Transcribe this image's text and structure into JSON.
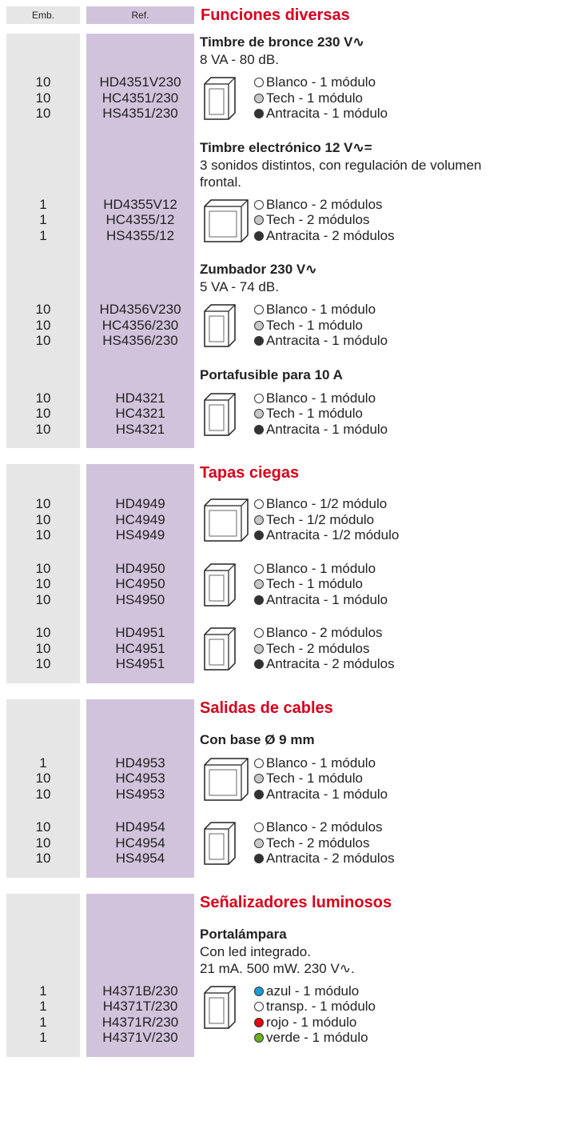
{
  "header": {
    "emb": "Emb.",
    "ref": "Ref."
  },
  "sections": [
    {
      "title": "Funciones diversas",
      "groups": [
        {
          "subtitle": "Timbre de bronce 230 V∿",
          "description": [
            "8 VA - 80 dB."
          ],
          "rows": [
            {
              "emb": "10",
              "ref": "HD4351V230",
              "label": "Blanco - 1 módulo",
              "color": "#ffffff"
            },
            {
              "emb": "10",
              "ref": "HC4351/230",
              "label": "Tech - 1 módulo",
              "color": "#c8c8c8"
            },
            {
              "emb": "10",
              "ref": "HS4351/230",
              "label": "Antracita - 1 módulo",
              "color": "#333333"
            }
          ]
        },
        {
          "subtitle": "Timbre electrónico 12 V∿=",
          "description": [
            "3 sonidos distintos, con regulación de volumen",
            "frontal."
          ],
          "rows": [
            {
              "emb": "1",
              "ref": "HD4355V12",
              "label": "Blanco - 2 módulos",
              "color": "#ffffff"
            },
            {
              "emb": "1",
              "ref": "HC4355/12",
              "label": "Tech - 2 módulos",
              "color": "#c8c8c8"
            },
            {
              "emb": "1",
              "ref": "HS4355/12",
              "label": "Antracita - 2 módulos",
              "color": "#333333"
            }
          ]
        },
        {
          "subtitle": "Zumbador 230 V∿",
          "description": [
            "5 VA - 74 dB."
          ],
          "rows": [
            {
              "emb": "10",
              "ref": "HD4356V230",
              "label": "Blanco - 1 módulo",
              "color": "#ffffff"
            },
            {
              "emb": "10",
              "ref": "HC4356/230",
              "label": "Tech - 1 módulo",
              "color": "#c8c8c8"
            },
            {
              "emb": "10",
              "ref": "HS4356/230",
              "label": "Antracita - 1 módulo",
              "color": "#333333"
            }
          ]
        },
        {
          "subtitle": "Portafusible para 10 A",
          "description": [],
          "rows": [
            {
              "emb": "10",
              "ref": "HD4321",
              "label": "Blanco - 1 módulo",
              "color": "#ffffff"
            },
            {
              "emb": "10",
              "ref": "HC4321",
              "label": "Tech - 1 módulo",
              "color": "#c8c8c8"
            },
            {
              "emb": "10",
              "ref": "HS4321",
              "label": "Antracita - 1 módulo",
              "color": "#333333"
            }
          ]
        }
      ]
    },
    {
      "title": "Tapas ciegas",
      "groups": [
        {
          "rows": [
            {
              "emb": "10",
              "ref": "HD4949",
              "label": "Blanco - 1/2 módulo",
              "color": "#ffffff"
            },
            {
              "emb": "10",
              "ref": "HC4949",
              "label": "Tech - 1/2 módulo",
              "color": "#c8c8c8"
            },
            {
              "emb": "10",
              "ref": "HS4949",
              "label": "Antracita - 1/2 módulo",
              "color": "#333333"
            }
          ]
        },
        {
          "rows": [
            {
              "emb": "10",
              "ref": "HD4950",
              "label": "Blanco - 1 módulo",
              "color": "#ffffff"
            },
            {
              "emb": "10",
              "ref": "HC4950",
              "label": "Tech - 1 módulo",
              "color": "#c8c8c8"
            },
            {
              "emb": "10",
              "ref": "HS4950",
              "label": "Antracita - 1 módulo",
              "color": "#333333"
            }
          ]
        },
        {
          "rows": [
            {
              "emb": "10",
              "ref": "HD4951",
              "label": "Blanco - 2 módulos",
              "color": "#ffffff"
            },
            {
              "emb": "10",
              "ref": "HC4951",
              "label": "Tech - 2 módulos",
              "color": "#c8c8c8"
            },
            {
              "emb": "10",
              "ref": "HS4951",
              "label": "Antracita - 2 módulos",
              "color": "#333333"
            }
          ]
        }
      ]
    },
    {
      "title": "Salidas de cables",
      "groups": [
        {
          "subtitle": "Con base Ø 9 mm",
          "description": [],
          "rows": [
            {
              "emb": "1",
              "ref": "HD4953",
              "label": "Blanco - 1 módulo",
              "color": "#ffffff"
            },
            {
              "emb": "10",
              "ref": "HC4953",
              "label": "Tech - 1 módulo",
              "color": "#c8c8c8"
            },
            {
              "emb": "10",
              "ref": "HS4953",
              "label": "Antracita - 1 módulo",
              "color": "#333333"
            }
          ]
        },
        {
          "rows": [
            {
              "emb": "10",
              "ref": "HD4954",
              "label": "Blanco - 2 módulos",
              "color": "#ffffff"
            },
            {
              "emb": "10",
              "ref": "HC4954",
              "label": "Tech - 2 módulos",
              "color": "#c8c8c8"
            },
            {
              "emb": "10",
              "ref": "HS4954",
              "label": "Antracita - 2 módulos",
              "color": "#333333"
            }
          ]
        }
      ]
    },
    {
      "title": "Señalizadores luminosos",
      "groups": [
        {
          "subtitle": "Portalámpara",
          "description": [
            "Con led integrado.",
            "21 mA. 500 mW. 230 V∿."
          ],
          "rows": [
            {
              "emb": "1",
              "ref": "H4371B/230",
              "label": "azul - 1 módulo",
              "color": "#1e9bd7"
            },
            {
              "emb": "1",
              "ref": "H4371T/230",
              "label": "transp. - 1 módulo",
              "color": "#ffffff"
            },
            {
              "emb": "1",
              "ref": "H4371R/230",
              "label": "rojo - 1 módulo",
              "color": "#e30613"
            },
            {
              "emb": "1",
              "ref": "H4371V/230",
              "label": "verde - 1 módulo",
              "color": "#6ab023"
            }
          ]
        }
      ]
    }
  ]
}
